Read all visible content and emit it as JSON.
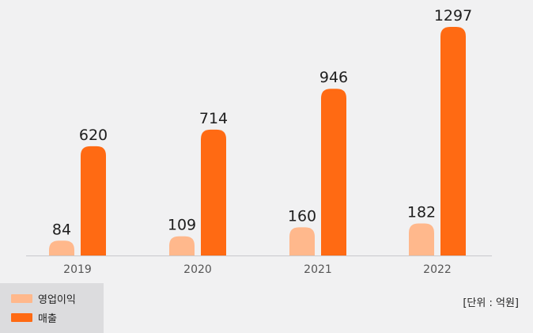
{
  "chart_data": {
    "type": "bar",
    "categories": [
      "2019",
      "2020",
      "2021",
      "2022"
    ],
    "series": [
      {
        "name": "영업이익",
        "values": [
          84,
          109,
          160,
          182
        ]
      },
      {
        "name": "매출",
        "values": [
          620,
          714,
          946,
          1297
        ]
      }
    ],
    "ylim": [
      0,
      1350
    ],
    "grid": false,
    "legend_position": "bottom-left",
    "unit_note": "[단위 : 억원]",
    "colors": {
      "background": "#f1f1f2",
      "legend_background": "#dcdcde",
      "series": [
        "#ffb88c",
        "#ff6a13"
      ],
      "axis": "#c9c9cc",
      "tick_label": "#555555",
      "value_label": "#1e1e1e"
    }
  }
}
